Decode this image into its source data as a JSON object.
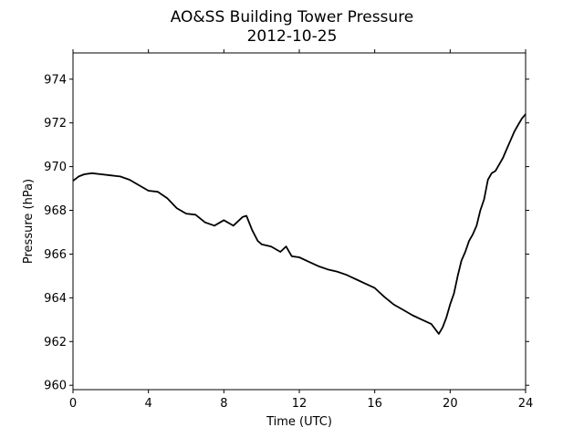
{
  "chart_data": {
    "type": "line",
    "title": "AO&SS Building Tower Pressure",
    "subtitle": "2012-10-25",
    "xlabel": "Time (UTC)",
    "ylabel": "Pressure (hPa)",
    "xlim": [
      0,
      24
    ],
    "ylim": [
      959.8,
      975.2
    ],
    "xticks": [
      0,
      4,
      8,
      12,
      16,
      20,
      24
    ],
    "yticks": [
      960,
      962,
      964,
      966,
      968,
      970,
      972,
      974
    ],
    "grid": false,
    "line_color": "#000000",
    "series": [
      {
        "x": [
          0,
          0.3,
          0.6,
          1,
          1.5,
          2,
          2.5,
          3,
          3.5,
          4,
          4.5,
          5,
          5.5,
          6,
          6.5,
          7,
          7.5,
          8,
          8.5,
          9,
          9.2,
          9.5,
          9.8,
          10,
          10.5,
          11,
          11.3,
          11.6,
          12,
          12.5,
          13,
          13.5,
          14,
          14.5,
          15,
          15.5,
          16,
          16.5,
          17,
          17.5,
          18,
          18.5,
          19,
          19.4,
          19.6,
          19.8,
          20,
          20.2,
          20.4,
          20.6,
          20.8,
          21,
          21.2,
          21.4,
          21.6,
          21.8,
          22,
          22.2,
          22.4,
          22.6,
          22.8,
          23,
          23.2,
          23.4,
          23.6,
          23.8,
          24
        ],
        "y": [
          969.35,
          969.55,
          969.65,
          969.7,
          969.65,
          969.6,
          969.55,
          969.4,
          969.15,
          968.9,
          968.85,
          968.55,
          968.1,
          967.85,
          967.8,
          967.45,
          967.3,
          967.55,
          967.3,
          967.7,
          967.75,
          967.1,
          966.6,
          966.45,
          966.35,
          966.1,
          966.35,
          965.9,
          965.85,
          965.65,
          965.45,
          965.3,
          965.2,
          965.05,
          964.85,
          964.65,
          964.45,
          964.05,
          963.7,
          963.45,
          963.2,
          963.0,
          962.8,
          962.35,
          962.65,
          963.1,
          963.7,
          964.2,
          965.0,
          965.7,
          966.1,
          966.6,
          966.9,
          967.3,
          968.0,
          968.5,
          969.4,
          969.7,
          969.8,
          970.1,
          970.4,
          970.8,
          971.2,
          971.6,
          971.9,
          972.2,
          972.4
        ]
      }
    ]
  }
}
